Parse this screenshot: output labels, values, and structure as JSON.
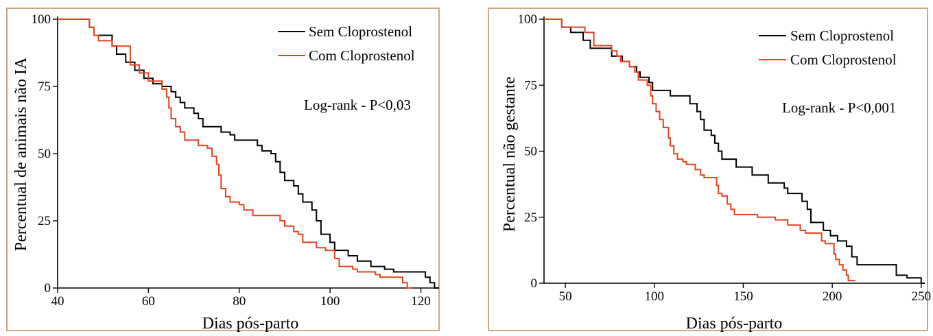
{
  "chart_data": [
    {
      "type": "line",
      "title": "",
      "xlabel": "Dias pós-parto",
      "ylabel": "Percentual de animais não IA",
      "xlim": [
        40,
        124
      ],
      "ylim": [
        0,
        100
      ],
      "x_ticks": [
        "40",
        "60",
        "80",
        "100",
        "120"
      ],
      "y_ticks": [
        "0",
        "25",
        "50",
        "75",
        "100"
      ],
      "legend_position": "top-right",
      "annotation": "Log-rank - P<0,03",
      "step": true,
      "series": [
        {
          "name": "Sem Cloprostenol",
          "color": "#000000",
          "points": [
            [
              40,
              100
            ],
            [
              47,
              100
            ],
            [
              47,
              97
            ],
            [
              48,
              94
            ],
            [
              51,
              94
            ],
            [
              52,
              90
            ],
            [
              53,
              87
            ],
            [
              55,
              84
            ],
            [
              57,
              81
            ],
            [
              59,
              78
            ],
            [
              61,
              76
            ],
            [
              63,
              75
            ],
            [
              65,
              73
            ],
            [
              66,
              71
            ],
            [
              67,
              69
            ],
            [
              68,
              67
            ],
            [
              70,
              65
            ],
            [
              71,
              63
            ],
            [
              72,
              60
            ],
            [
              75,
              60
            ],
            [
              76,
              58
            ],
            [
              78,
              57
            ],
            [
              79,
              55
            ],
            [
              83,
              55
            ],
            [
              84,
              53
            ],
            [
              85,
              51
            ],
            [
              87,
              50
            ],
            [
              88,
              47
            ],
            [
              89,
              43
            ],
            [
              90,
              40
            ],
            [
              92,
              38
            ],
            [
              93,
              35
            ],
            [
              94,
              32
            ],
            [
              96,
              29
            ],
            [
              97,
              25
            ],
            [
              98,
              20
            ],
            [
              100,
              17
            ],
            [
              101,
              14
            ],
            [
              103,
              14
            ],
            [
              104,
              12
            ],
            [
              106,
              10
            ],
            [
              109,
              8
            ],
            [
              112,
              7
            ],
            [
              114,
              6
            ],
            [
              120,
              6
            ],
            [
              121,
              4
            ],
            [
              122,
              2
            ],
            [
              123,
              0
            ],
            [
              124,
              0
            ]
          ]
        },
        {
          "name": "Com Cloprostenol",
          "color": "#e8401c",
          "points": [
            [
              40,
              100
            ],
            [
              47,
              100
            ],
            [
              47,
              97
            ],
            [
              48,
              94
            ],
            [
              49,
              92
            ],
            [
              51,
              92
            ],
            [
              52,
              90
            ],
            [
              55,
              90
            ],
            [
              56,
              83
            ],
            [
              58,
              80
            ],
            [
              60,
              77
            ],
            [
              63,
              74
            ],
            [
              64,
              71
            ],
            [
              64.5,
              67
            ],
            [
              65,
              63
            ],
            [
              66,
              60
            ],
            [
              67,
              58
            ],
            [
              68,
              55
            ],
            [
              70,
              55
            ],
            [
              71,
              53
            ],
            [
              73,
              52
            ],
            [
              74,
              49
            ],
            [
              75,
              46
            ],
            [
              75.5,
              42
            ],
            [
              76,
              37
            ],
            [
              77,
              34
            ],
            [
              78,
              32
            ],
            [
              80,
              31
            ],
            [
              81,
              29
            ],
            [
              83,
              27
            ],
            [
              88,
              27
            ],
            [
              89,
              25
            ],
            [
              90,
              23
            ],
            [
              92,
              21
            ],
            [
              93,
              20
            ],
            [
              94,
              17
            ],
            [
              97,
              15
            ],
            [
              99,
              14
            ],
            [
              101,
              11
            ],
            [
              102,
              8
            ],
            [
              105,
              7
            ],
            [
              106,
              6
            ],
            [
              110,
              5
            ],
            [
              111,
              4
            ],
            [
              115,
              4
            ],
            [
              116,
              2
            ],
            [
              117,
              0
            ],
            [
              118,
              0
            ]
          ]
        }
      ]
    },
    {
      "type": "line",
      "title": "",
      "xlabel": "Dias pós-parto",
      "ylabel": "Percentual não gestante",
      "xlim": [
        38,
        252
      ],
      "ylim": [
        0,
        100
      ],
      "x_ticks": [
        "50",
        "100",
        "150",
        "200",
        "250"
      ],
      "y_ticks": [
        "0",
        "25",
        "50",
        "75",
        "100"
      ],
      "legend_position": "top-right",
      "annotation": "Log-rank - P<0,001",
      "step": true,
      "series": [
        {
          "name": "Sem Cloprostenol",
          "color": "#000000",
          "points": [
            [
              38,
              100
            ],
            [
              46,
              100
            ],
            [
              48,
              97
            ],
            [
              53,
              95
            ],
            [
              60,
              92
            ],
            [
              64,
              89
            ],
            [
              72,
              89
            ],
            [
              76,
              86
            ],
            [
              82,
              84
            ],
            [
              86,
              82
            ],
            [
              90,
              80
            ],
            [
              92,
              78
            ],
            [
              97,
              76
            ],
            [
              99,
              73
            ],
            [
              108,
              73
            ],
            [
              109,
              71
            ],
            [
              117,
              71
            ],
            [
              120,
              68
            ],
            [
              124,
              65
            ],
            [
              126,
              62
            ],
            [
              128,
              58
            ],
            [
              132,
              56
            ],
            [
              134,
              53
            ],
            [
              136,
              50
            ],
            [
              138,
              47
            ],
            [
              144,
              47
            ],
            [
              146,
              44
            ],
            [
              152,
              44
            ],
            [
              155,
              41
            ],
            [
              162,
              41
            ],
            [
              164,
              38
            ],
            [
              171,
              38
            ],
            [
              173,
              36
            ],
            [
              175,
              34
            ],
            [
              181,
              34
            ],
            [
              183,
              31
            ],
            [
              186,
              28
            ],
            [
              188,
              23
            ],
            [
              193,
              23
            ],
            [
              195,
              20
            ],
            [
              199,
              18
            ],
            [
              203,
              16
            ],
            [
              208,
              14
            ],
            [
              211,
              10
            ],
            [
              214,
              7
            ],
            [
              220,
              7
            ],
            [
              223,
              7
            ],
            [
              236,
              3
            ],
            [
              242,
              2
            ],
            [
              247,
              2
            ],
            [
              250,
              0
            ],
            [
              252,
              0
            ]
          ]
        },
        {
          "name": "Com Cloprostenol",
          "color": "#e8401c",
          "points": [
            [
              38,
              100
            ],
            [
              46,
              100
            ],
            [
              48,
              97
            ],
            [
              54,
              97
            ],
            [
              61,
              95
            ],
            [
              66,
              90
            ],
            [
              74,
              90
            ],
            [
              76,
              88
            ],
            [
              79,
              86
            ],
            [
              81,
              84
            ],
            [
              86,
              82
            ],
            [
              89,
              80
            ],
            [
              91,
              77
            ],
            [
              95,
              77
            ],
            [
              96,
              75
            ],
            [
              98,
              71
            ],
            [
              99,
              68
            ],
            [
              101,
              65
            ],
            [
              103,
              62
            ],
            [
              105,
              59
            ],
            [
              108,
              55
            ],
            [
              109,
              52
            ],
            [
              111,
              49
            ],
            [
              113,
              47
            ],
            [
              116,
              46
            ],
            [
              118,
              45
            ],
            [
              122,
              45
            ],
            [
              123,
              43
            ],
            [
              126,
              41
            ],
            [
              128,
              40
            ],
            [
              134,
              40
            ],
            [
              135,
              37
            ],
            [
              136,
              34
            ],
            [
              138,
              33
            ],
            [
              141,
              30
            ],
            [
              143,
              28
            ],
            [
              145,
              26
            ],
            [
              156,
              26
            ],
            [
              158,
              25
            ],
            [
              164,
              25
            ],
            [
              168,
              24
            ],
            [
              175,
              22
            ],
            [
              182,
              20
            ],
            [
              185,
              19
            ],
            [
              192,
              19
            ],
            [
              194,
              16
            ],
            [
              196,
              15
            ],
            [
              199,
              15
            ],
            [
              201,
              11
            ],
            [
              202,
              9
            ],
            [
              204,
              7
            ],
            [
              206,
              5
            ],
            [
              208,
              3
            ],
            [
              209,
              1
            ],
            [
              213,
              1
            ]
          ]
        }
      ]
    }
  ]
}
